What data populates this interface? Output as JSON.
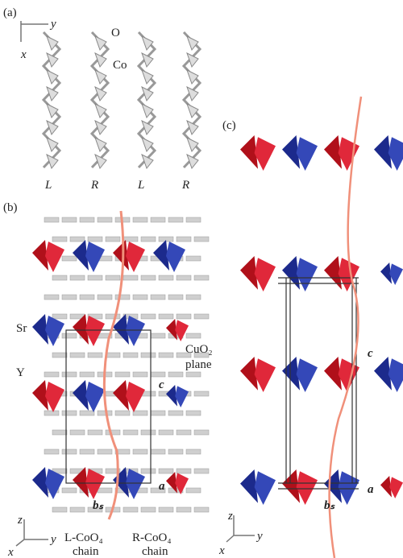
{
  "panel_a": {
    "label": "(a)",
    "axis_x": "x",
    "axis_y": "y",
    "atom_o": "O",
    "atom_co": "Co",
    "chains": [
      "L",
      "R",
      "L",
      "R"
    ]
  },
  "panel_b": {
    "label": "(b)",
    "atom_sr": "Sr",
    "atom_y": "Y",
    "plane": [
      "CuO₂",
      "plane"
    ],
    "axis_c": "c",
    "axis_a": "a",
    "axis_bs": "bₛ",
    "axis_z": "z",
    "axis_y": "y",
    "axis_x": "x",
    "chain_l": [
      "L-CoO₄",
      "chain"
    ],
    "chain_r": [
      "R-CoO₄",
      "chain"
    ]
  },
  "panel_c": {
    "label": "(c)",
    "axis_c": "c",
    "axis_a": "a",
    "axis_bs": "bₛ",
    "axis_z": "z",
    "axis_y": "y",
    "axis_x": "x"
  }
}
